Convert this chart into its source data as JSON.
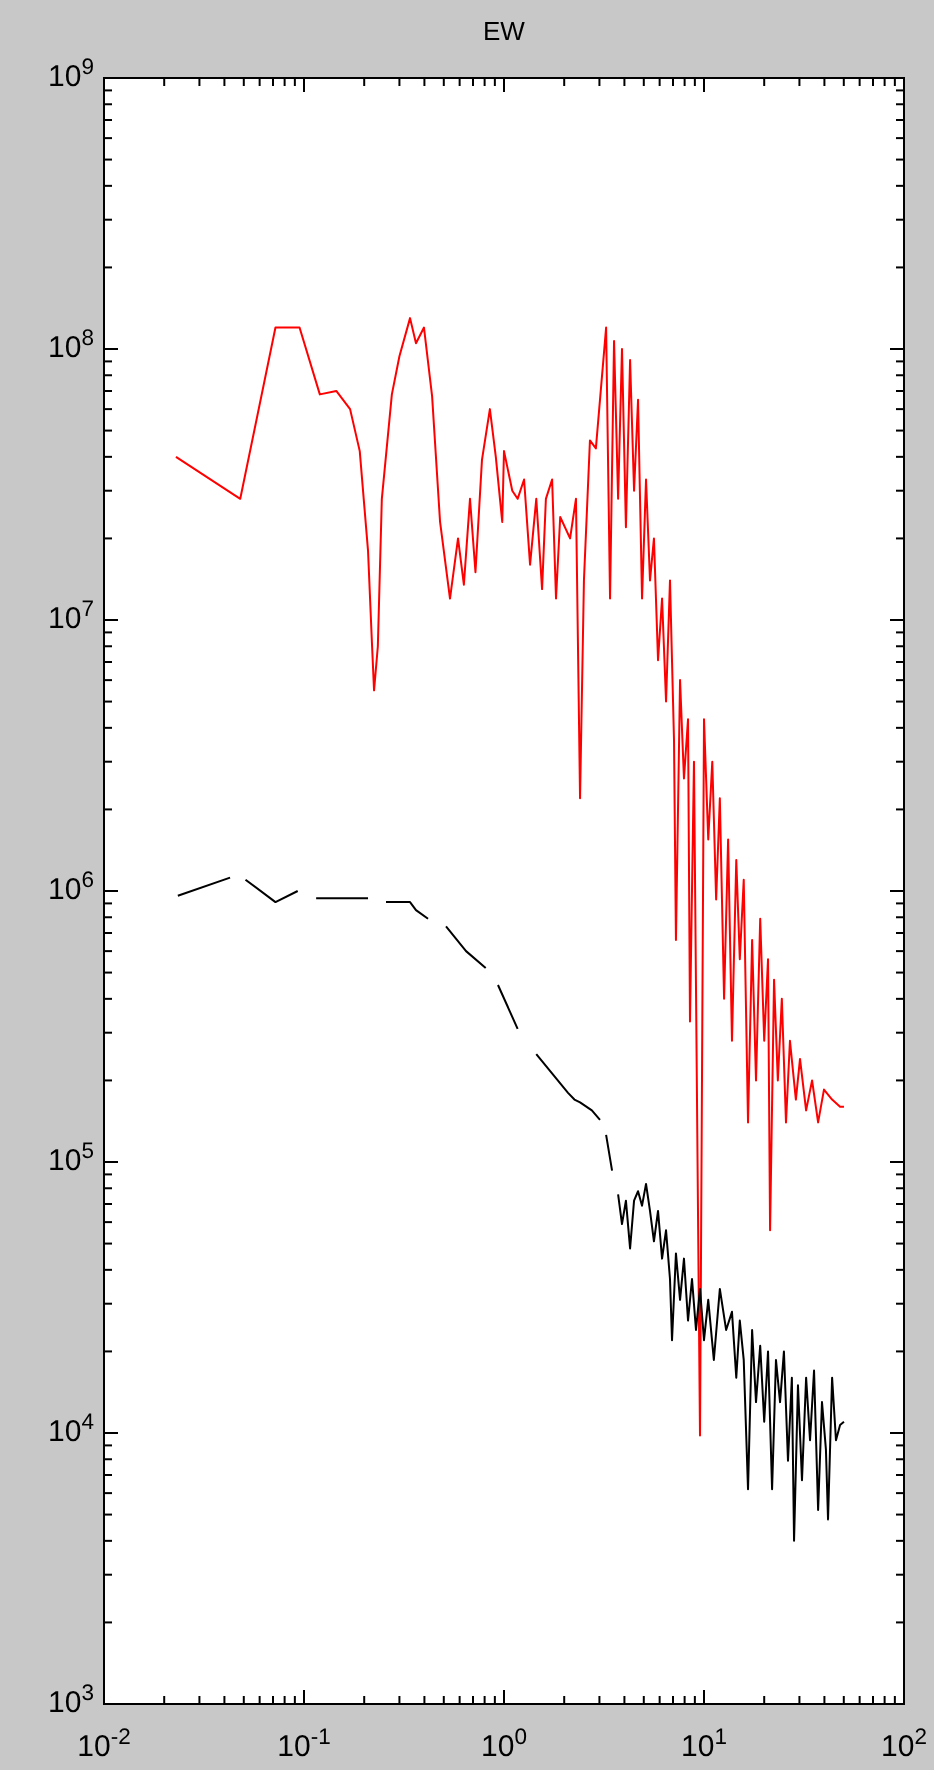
{
  "chart_data": {
    "type": "line",
    "title": "EW",
    "log": "xy",
    "grid": false,
    "line_style": "solid",
    "marker": "none",
    "xlim": [
      0.01,
      100
    ],
    "ylim": [
      1000,
      1000000000
    ],
    "xticks": [
      {
        "value": 0.01,
        "label": "10$^{-2}$"
      },
      {
        "value": 0.02,
        "label": null
      },
      {
        "value": 0.03,
        "label": null
      },
      {
        "value": 0.04,
        "label": null
      },
      {
        "value": 0.05,
        "label": null
      },
      {
        "value": 0.06,
        "label": null
      },
      {
        "value": 0.07,
        "label": null
      },
      {
        "value": 0.08,
        "label": null
      },
      {
        "value": 0.09,
        "label": null
      },
      {
        "value": 0.1,
        "label": "10$^{-1}$"
      },
      {
        "value": 0.2,
        "label": null
      },
      {
        "value": 0.3,
        "label": null
      },
      {
        "value": 0.4,
        "label": null
      },
      {
        "value": 0.5,
        "label": null
      },
      {
        "value": 0.6,
        "label": null
      },
      {
        "value": 0.7,
        "label": null
      },
      {
        "value": 0.8,
        "label": null
      },
      {
        "value": 0.9,
        "label": null
      },
      {
        "value": 1,
        "label": "10$^{0}$"
      },
      {
        "value": 2,
        "label": null
      },
      {
        "value": 3,
        "label": null
      },
      {
        "value": 4,
        "label": null
      },
      {
        "value": 5,
        "label": null
      },
      {
        "value": 6,
        "label": null
      },
      {
        "value": 7,
        "label": null
      },
      {
        "value": 8,
        "label": null
      },
      {
        "value": 9,
        "label": null
      },
      {
        "value": 10,
        "label": "10$^{1}$"
      },
      {
        "value": 20,
        "label": null
      },
      {
        "value": 30,
        "label": null
      },
      {
        "value": 40,
        "label": null
      },
      {
        "value": 50,
        "label": null
      },
      {
        "value": 60,
        "label": null
      },
      {
        "value": 70,
        "label": null
      },
      {
        "value": 80,
        "label": null
      },
      {
        "value": 90,
        "label": null
      },
      {
        "value": 100,
        "label": "10$^{2}$"
      }
    ],
    "yticks": [
      {
        "value": 1000,
        "label": "10$^{3}$"
      },
      {
        "value": 2000,
        "label": null
      },
      {
        "value": 3000,
        "label": null
      },
      {
        "value": 4000,
        "label": null
      },
      {
        "value": 5000,
        "label": null
      },
      {
        "value": 6000,
        "label": null
      },
      {
        "value": 7000,
        "label": null
      },
      {
        "value": 8000,
        "label": null
      },
      {
        "value": 9000,
        "label": null
      },
      {
        "value": 10000,
        "label": "10$^{4}$"
      },
      {
        "value": 20000,
        "label": null
      },
      {
        "value": 30000,
        "label": null
      },
      {
        "value": 40000,
        "label": null
      },
      {
        "value": 50000,
        "label": null
      },
      {
        "value": 60000,
        "label": null
      },
      {
        "value": 70000,
        "label": null
      },
      {
        "value": 80000,
        "label": null
      },
      {
        "value": 90000,
        "label": null
      },
      {
        "value": 100000,
        "label": "10$^{5}$"
      },
      {
        "value": 200000,
        "label": null
      },
      {
        "value": 300000,
        "label": null
      },
      {
        "value": 400000,
        "label": null
      },
      {
        "value": 500000,
        "label": null
      },
      {
        "value": 600000,
        "label": null
      },
      {
        "value": 700000,
        "label": null
      },
      {
        "value": 800000,
        "label": null
      },
      {
        "value": 900000,
        "label": null
      },
      {
        "value": 1000000,
        "label": "10$^{6}$"
      },
      {
        "value": 2000000,
        "label": null
      },
      {
        "value": 3000000,
        "label": null
      },
      {
        "value": 4000000,
        "label": null
      },
      {
        "value": 5000000,
        "label": null
      },
      {
        "value": 6000000,
        "label": null
      },
      {
        "value": 7000000,
        "label": null
      },
      {
        "value": 8000000,
        "label": null
      },
      {
        "value": 9000000,
        "label": null
      },
      {
        "value": 10000000,
        "label": "10$^{7}$"
      },
      {
        "value": 20000000,
        "label": null
      },
      {
        "value": 30000000,
        "label": null
      },
      {
        "value": 40000000,
        "label": null
      },
      {
        "value": 50000000,
        "label": null
      },
      {
        "value": 60000000,
        "label": null
      },
      {
        "value": 70000000,
        "label": null
      },
      {
        "value": 80000000,
        "label": null
      },
      {
        "value": 90000000,
        "label": null
      },
      {
        "value": 100000000,
        "label": "10$^{8}$"
      },
      {
        "value": 200000000,
        "label": null
      },
      {
        "value": 300000000,
        "label": null
      },
      {
        "value": 400000000,
        "label": null
      },
      {
        "value": 500000000,
        "label": null
      },
      {
        "value": 600000000,
        "label": null
      },
      {
        "value": 700000000,
        "label": null
      },
      {
        "value": 800000000,
        "label": null
      },
      {
        "value": 900000000,
        "label": null
      },
      {
        "value": 1000000000,
        "label": "10$^{9}$"
      }
    ],
    "series": [
      {
        "color": "#ff0000",
        "x": [
          0.0229,
          0.048,
          0.072,
          0.095,
          0.12,
          0.145,
          0.17,
          0.19,
          0.209,
          0.219,
          0.224,
          0.234,
          0.245,
          0.275,
          0.3,
          0.339,
          0.363,
          0.398,
          0.437,
          0.479,
          0.537,
          0.589,
          0.63,
          0.676,
          0.72,
          0.776,
          0.85,
          0.91,
          0.98,
          1.0,
          1.1,
          1.17,
          1.26,
          1.35,
          1.45,
          1.55,
          1.62,
          1.74,
          1.82,
          1.91,
          2.14,
          2.29,
          2.4,
          2.51,
          2.69,
          2.88,
          3.02,
          3.24,
          3.39,
          3.55,
          3.72,
          3.89,
          4.07,
          4.27,
          4.47,
          4.68,
          4.9,
          5.13,
          5.37,
          5.62,
          5.89,
          6.17,
          6.46,
          6.76,
          7.08,
          7.24,
          7.59,
          7.94,
          8.32,
          8.51,
          8.91,
          9.55,
          10.0,
          10.5,
          11.0,
          11.5,
          12.0,
          12.6,
          13.2,
          13.8,
          14.5,
          15.1,
          15.8,
          16.6,
          17.4,
          18.2,
          19.1,
          20.0,
          20.9,
          21.4,
          22.4,
          23.4,
          24.5,
          25.7,
          26.9,
          28.8,
          30.2,
          32.4,
          34.7,
          37.2,
          39.8,
          43.7,
          47.9,
          50.1
        ],
        "values": [
          40000000.0,
          28000000.0,
          120000000.0,
          120000000.0,
          68000000.0,
          70000000.0,
          60000000.0,
          42000000.0,
          18000000.0,
          8000000.0,
          5500000.0,
          8000000.0,
          28000000.0,
          68000000.0,
          94000000.0,
          130000000.0,
          105000000.0,
          120000000.0,
          67000000.0,
          23000000.0,
          12000000.0,
          20000000.0,
          13500000.0,
          28000000.0,
          15000000.0,
          39000000.0,
          60000000.0,
          40000000.0,
          23000000.0,
          42000000.0,
          30000000.0,
          28000000.0,
          33000000.0,
          16000000.0,
          28000000.0,
          13000000.0,
          28000000.0,
          33000000.0,
          12000000.0,
          24000000.0,
          20000000.0,
          28000000.0,
          2200000.0,
          14000000.0,
          46000000.0,
          43000000.0,
          65000000.0,
          120000000.0,
          12000000.0,
          107000000.0,
          28000000.0,
          100000000.0,
          22000000.0,
          91000000.0,
          30000000.0,
          65000000.0,
          12000000.0,
          33000000.0,
          14000000.0,
          20000000.0,
          7100000.0,
          12000000.0,
          5000000.0,
          14000000.0,
          3600000.0,
          660000.0,
          6000000.0,
          2600000.0,
          4300000.0,
          330000.0,
          3000000.0,
          9800.0,
          4300000.0,
          1550000.0,
          3000000.0,
          930000.0,
          2200000.0,
          400000.0,
          1550000.0,
          280000.0,
          1300000.0,
          560000.0,
          1100000.0,
          140000.0,
          660000.0,
          200000.0,
          790000.0,
          280000.0,
          560000.0,
          56000.0,
          470000.0,
          200000.0,
          400000.0,
          140000.0,
          280000.0,
          170000.0,
          240000.0,
          155000.0,
          200000.0,
          140000.0,
          185000.0,
          170000.0,
          160000.0,
          160000.0
        ]
      },
      {
        "color": "#000000",
        "x": [
          0.0234,
          0.0427,
          0.047,
          0.051,
          0.072,
          0.093,
          0.1,
          0.115,
          0.209,
          0.23,
          0.257,
          0.339,
          0.363,
          0.417,
          0.46,
          0.513,
          0.646,
          0.81,
          0.87,
          0.933,
          1.17,
          1.3,
          1.45,
          2.09,
          2.25,
          2.4,
          2.75,
          3.02,
          3.1,
          3.24,
          3.47,
          3.6,
          3.72,
          3.89,
          4.07,
          4.27,
          4.47,
          4.68,
          4.9,
          5.13,
          5.37,
          5.62,
          5.89,
          6.17,
          6.46,
          6.76,
          6.92,
          7.24,
          7.59,
          7.94,
          8.32,
          8.71,
          9.12,
          9.55,
          10.0,
          10.5,
          11.2,
          12.0,
          12.9,
          13.8,
          14.5,
          15.1,
          15.8,
          16.6,
          17.4,
          18.2,
          19.1,
          20.0,
          20.9,
          21.9,
          22.9,
          24.0,
          25.1,
          26.3,
          27.5,
          28.2,
          29.5,
          30.9,
          32.4,
          33.9,
          35.5,
          37.2,
          38.9,
          40.7,
          41.7,
          43.7,
          45.7,
          47.9,
          50.1
        ],
        "values": [
          960000.0,
          1120000.0,
          null,
          1100000.0,
          910000.0,
          1000000.0,
          null,
          940000.0,
          940000.0,
          null,
          910000.0,
          910000.0,
          850000.0,
          790000.0,
          null,
          740000.0,
          600000.0,
          520000.0,
          null,
          450000.0,
          310000.0,
          null,
          250000.0,
          180000.0,
          170000.0,
          166000.0,
          155000.0,
          143000.0,
          null,
          126000.0,
          93000.0,
          null,
          76000.0,
          59000.0,
          72000.0,
          48000.0,
          72000.0,
          78000.0,
          69000.0,
          83000.0,
          66000.0,
          51000.0,
          66000.0,
          44000.0,
          56000.0,
          37000.0,
          22000.0,
          46000.0,
          31000.0,
          44000.0,
          26000.0,
          37000.0,
          24000.0,
          34000.0,
          22000.0,
          31000.0,
          18600.0,
          34000.0,
          24000.0,
          28000.0,
          16000.0,
          26000.0,
          18600.0,
          6200.0,
          24000.0,
          13000.0,
          21000.0,
          11000.0,
          20000.0,
          6200.0,
          18600.0,
          13000.0,
          20000.0,
          7900.0,
          16000.0,
          4000.0,
          15000.0,
          6700.0,
          16000.0,
          9400.0,
          17000.0,
          5200.0,
          13000.0,
          8700.0,
          4800.0,
          16000.0,
          9400.0,
          10700.0,
          11000.0
        ]
      }
    ]
  }
}
